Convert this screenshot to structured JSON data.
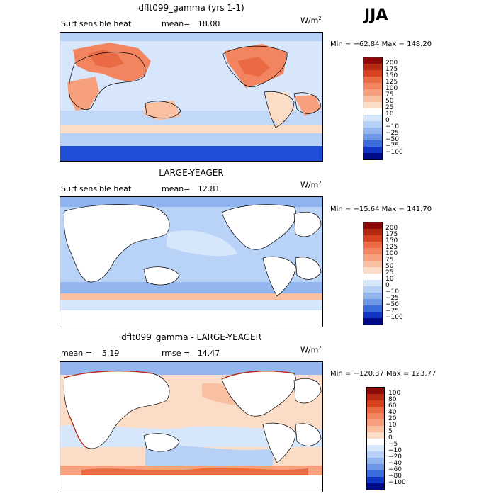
{
  "season": "JJA",
  "units_base": "W/m",
  "units_exp": "2",
  "panels": [
    {
      "title": "dflt099_gamma (yrs 1-1)",
      "left_label": "Surf sensible heat",
      "right_label": "mean=   18.00",
      "minmax": "Min = −62.84 Max = 148.20",
      "cbar_labels": [
        "200",
        "175",
        "150",
        "125",
        "100",
        "75",
        "50",
        "25",
        "10",
        "0",
        "−10",
        "−25",
        "−50",
        "−75",
        "−100"
      ],
      "cbar_colors": [
        "#8b0a0a",
        "#b52a12",
        "#d8431f",
        "#ea6a44",
        "#f2845f",
        "#f6a07e",
        "#f9bfa1",
        "#fbdcc6",
        "#ffffff",
        "#d6e6fb",
        "#b6d0f6",
        "#94b6ef",
        "#6d96e6",
        "#3c6cdc",
        "#1236c4",
        "#000b87"
      ]
    },
    {
      "title": "LARGE-YEAGER",
      "left_label": "Surf sensible heat",
      "right_label": "mean=   12.81",
      "minmax": "Min = −15.64 Max = 141.70",
      "cbar_labels": [
        "200",
        "175",
        "150",
        "125",
        "100",
        "75",
        "50",
        "25",
        "10",
        "0",
        "−10",
        "−25",
        "−50",
        "−75",
        "−100"
      ],
      "cbar_colors": [
        "#8b0a0a",
        "#b52a12",
        "#d8431f",
        "#ea6a44",
        "#f2845f",
        "#f6a07e",
        "#f9bfa1",
        "#fbdcc6",
        "#ffffff",
        "#d6e6fb",
        "#b6d0f6",
        "#94b6ef",
        "#6d96e6",
        "#3c6cdc",
        "#1236c4",
        "#000b87"
      ]
    },
    {
      "title": "dflt099_gamma - LARGE-YEAGER",
      "left_label": "mean =    5.19",
      "right_label": "rmse =   14.47",
      "minmax": "Min = −120.37 Max = 123.77",
      "cbar_labels": [
        "100",
        "80",
        "60",
        "40",
        "20",
        "10",
        "5",
        "0",
        "−5",
        "−10",
        "−20",
        "−40",
        "−60",
        "−80",
        "−100"
      ],
      "cbar_colors": [
        "#8b0a0a",
        "#b52a12",
        "#d8431f",
        "#ea6a44",
        "#f2845f",
        "#f6a07e",
        "#f9bfa1",
        "#fbdcc6",
        "#ffffff",
        "#d6e6fb",
        "#b6d0f6",
        "#94b6ef",
        "#6d96e6",
        "#3c6cdc",
        "#1236c4",
        "#000b87"
      ]
    }
  ],
  "colors": {
    "ocean_light": "#d7e6fb",
    "ocean_mid": "#b9d2f7",
    "ocean_blue": "#8eb3ef",
    "warm_light": "#fbdcc6",
    "warm_mid": "#f6a07e",
    "warm_strong": "#ea6a44",
    "southern_ocean": "#1f4fd8",
    "land": "#ffffff",
    "coast": "#000000"
  }
}
